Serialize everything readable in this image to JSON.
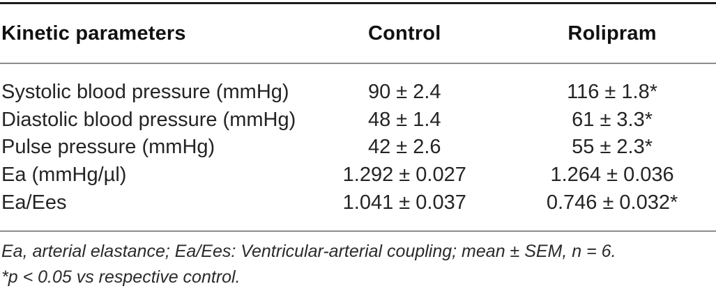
{
  "table": {
    "title_column_header": "Kinetic parameters",
    "columns": {
      "label": "Kinetic parameters",
      "control": "Control",
      "rolipram": "Rolipram"
    },
    "rows": [
      {
        "label": "Systolic blood pressure (mmHg)",
        "control": "90 ± 2.4",
        "rolipram": "116 ± 1.8*"
      },
      {
        "label": "Diastolic blood pressure (mmHg)",
        "control": "48 ± 1.4",
        "rolipram": "61 ± 3.3*"
      },
      {
        "label": "Pulse pressure (mmHg)",
        "control": "42 ± 2.6",
        "rolipram": "55 ± 2.3*"
      },
      {
        "label": "Ea (mmHg/µl)",
        "control": "1.292 ± 0.027",
        "rolipram": "1.264 ± 0.036"
      },
      {
        "label": "Ea/Ees",
        "control": "1.041 ± 0.037",
        "rolipram": "0.746 ± 0.032*"
      }
    ],
    "footnotes": [
      "Ea, arterial elastance; Ea/Ees: Ventricular-arterial coupling; mean ± SEM, n = 6.",
      "*p < 0.05 vs respective control."
    ],
    "colors": {
      "top_rule": "#1b1b1b",
      "thin_rule": "#8c8c8c",
      "text": "#1e1e1e"
    }
  }
}
